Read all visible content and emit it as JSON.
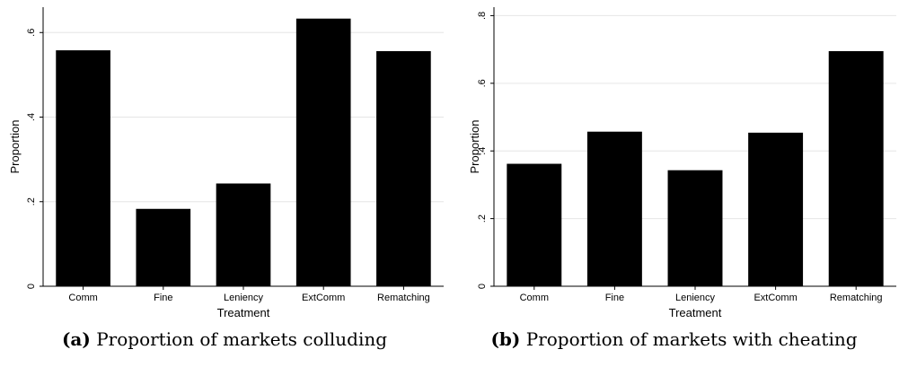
{
  "chart_data": [
    {
      "type": "bar",
      "categories": [
        "Comm",
        "Fine",
        "Leniency",
        "ExtComm",
        "Rematching"
      ],
      "values": [
        0.558,
        0.183,
        0.243,
        0.633,
        0.556
      ],
      "xlabel": "Treatment",
      "ylabel": "Proportion",
      "yticks": [
        0,
        0.2,
        0.4,
        0.6
      ],
      "ytick_labels": [
        "0",
        ".2",
        ".4",
        ".6"
      ],
      "ylim": [
        0,
        0.66
      ],
      "grid": true,
      "bar_color": "#000000",
      "caption_tag": "(a)",
      "caption_text": "Proportion of markets colluding"
    },
    {
      "type": "bar",
      "categories": [
        "Comm",
        "Fine",
        "Leniency",
        "ExtComm",
        "Rematching"
      ],
      "values": [
        0.362,
        0.457,
        0.343,
        0.454,
        0.695
      ],
      "xlabel": "Treatment",
      "ylabel": "Proportion",
      "yticks": [
        0,
        0.2,
        0.4,
        0.6,
        0.8
      ],
      "ytick_labels": [
        "0",
        ".2",
        ".4",
        ".6",
        ".8"
      ],
      "ylim": [
        0,
        0.825
      ],
      "grid": true,
      "bar_color": "#000000",
      "caption_tag": "(b)",
      "caption_text": "Proportion of markets with cheating"
    }
  ]
}
